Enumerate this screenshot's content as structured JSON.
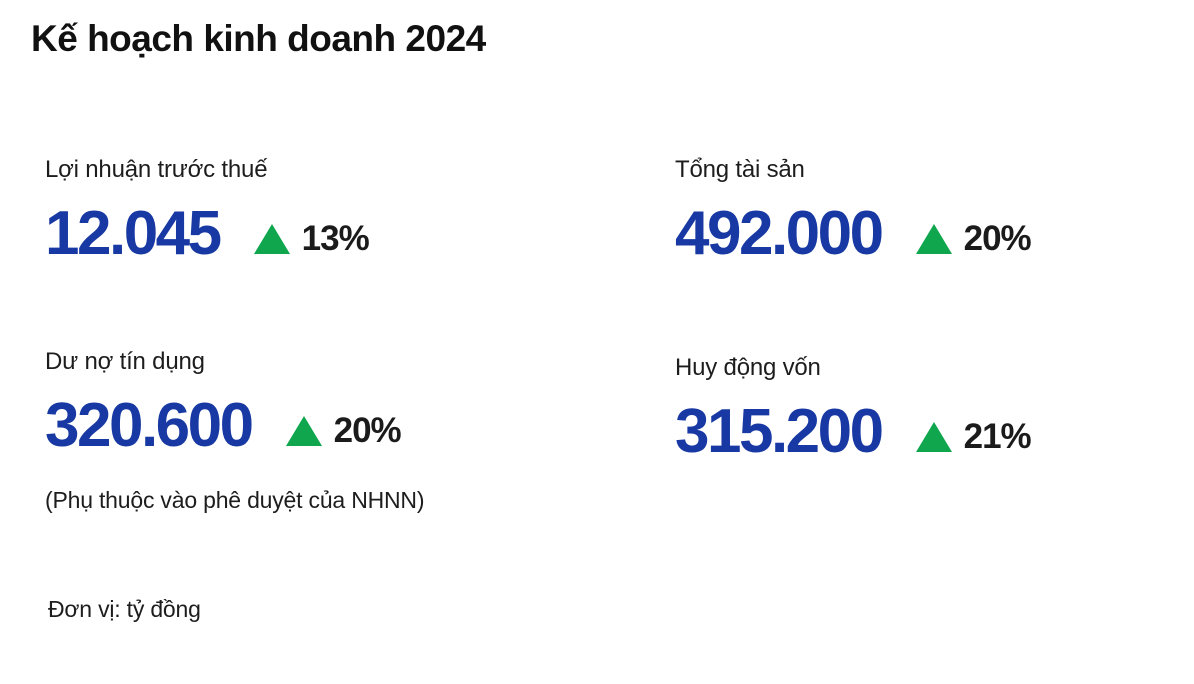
{
  "title": "Kế hoạch kinh doanh 2024",
  "colors": {
    "value_blue": "#1839a3",
    "triangle_green": "#10a64e",
    "text_dark": "#1b1b1b",
    "background": "#ffffff"
  },
  "icons": {
    "up_triangle": "up-triangle-icon"
  },
  "footer": {
    "unit_label": "Đơn vị: tỷ đồng"
  },
  "chart_data": {
    "type": "table",
    "title": "Kế hoạch kinh doanh 2024",
    "unit": "tỷ đồng",
    "categories": [
      "Lợi nhuận trước thuế",
      "Tổng tài sản",
      "Dư nợ tín dụng",
      "Huy động vốn"
    ],
    "values": [
      12045,
      492000,
      320600,
      315200
    ],
    "change_percent": [
      13,
      20,
      20,
      21
    ],
    "notes": [
      "",
      "",
      "(Phụ thuộc vào phê duyệt của NHNN)",
      ""
    ]
  },
  "metrics": [
    {
      "label": "Lợi nhuận trước thuế",
      "value": "12.045",
      "change": "13%",
      "note": ""
    },
    {
      "label": "Tổng tài sản",
      "value": "492.000",
      "change": "20%",
      "note": ""
    },
    {
      "label": "Dư nợ tín dụng",
      "value": "320.600",
      "change": "20%",
      "note": "(Phụ thuộc vào phê duyệt của NHNN)"
    },
    {
      "label": "Huy động vốn",
      "value": "315.200",
      "change": "21%",
      "note": ""
    }
  ]
}
